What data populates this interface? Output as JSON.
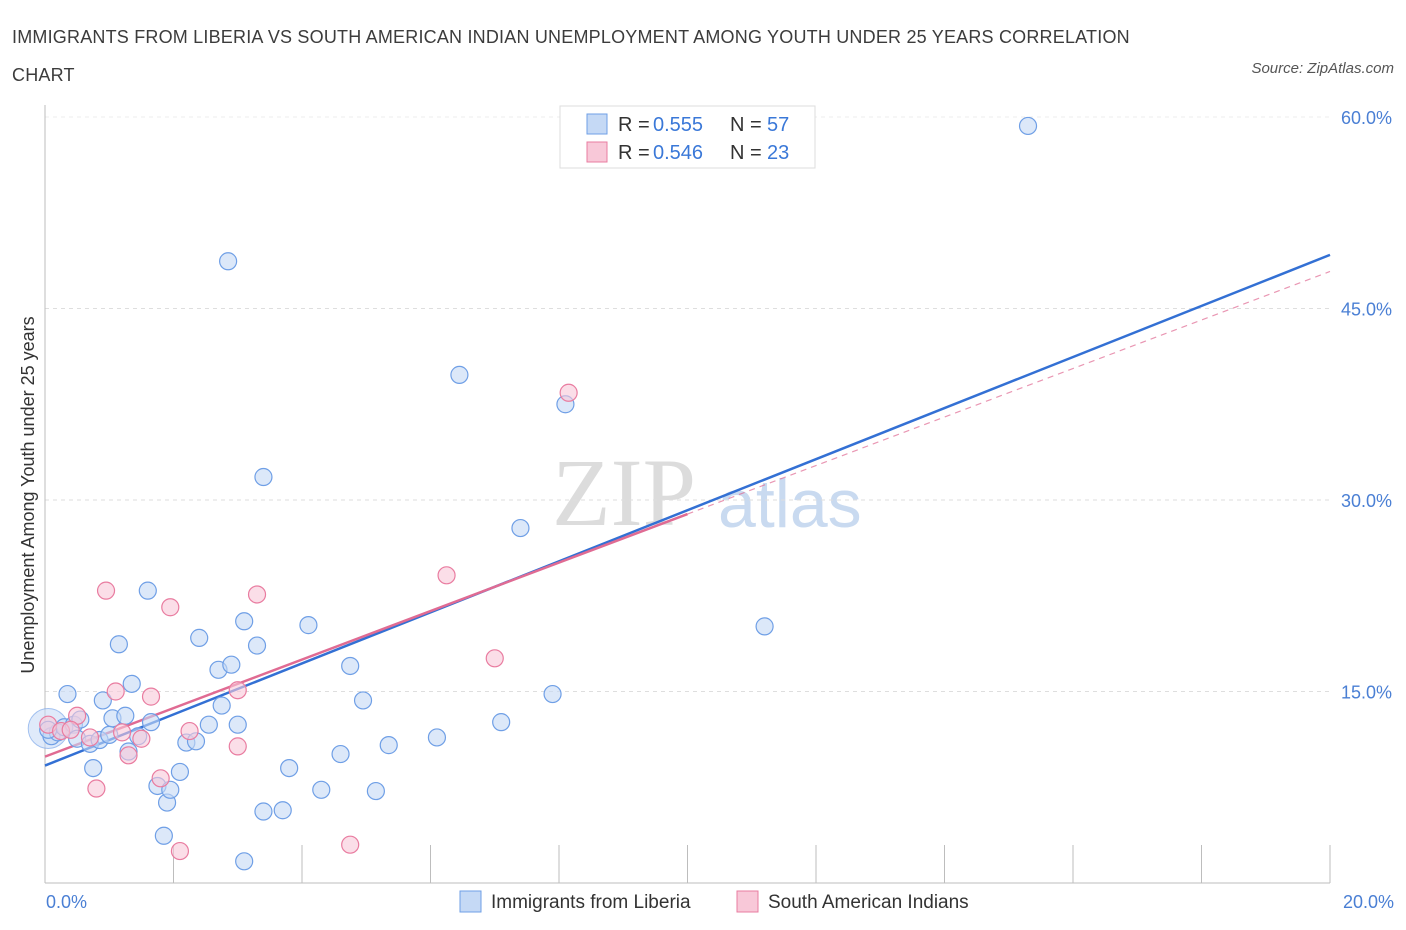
{
  "title": "IMMIGRANTS FROM LIBERIA VS SOUTH AMERICAN INDIAN UNEMPLOYMENT AMONG YOUTH UNDER 25 YEARS CORRELATION CHART",
  "source": "Source: ZipAtlas.com",
  "colors": {
    "blue": "#6f9fe6",
    "blue_fill": "#c5d9f5",
    "pink": "#e97ca0",
    "pink_fill": "#f8c8d8",
    "blue_line": "#3370d4",
    "pink_line": "#e06b93",
    "tick": "#4a7fd4"
  },
  "legend": {
    "r_label": "R =",
    "n_label": "N =",
    "rows": [
      {
        "r": "0.555",
        "n": "57"
      },
      {
        "r": "0.546",
        "n": "23"
      }
    ]
  },
  "watermark": {
    "zip": "ZIP",
    "atlas": "atlas"
  },
  "chart_data": {
    "type": "scatter",
    "title": "IMMIGRANTS FROM LIBERIA VS SOUTH AMERICAN INDIAN UNEMPLOYMENT AMONG YOUTH UNDER 25 YEARS CORRELATION CHART",
    "xlabel": "",
    "ylabel": "Unemployment Among Youth under 25 years",
    "xlim": [
      0,
      20
    ],
    "ylim": [
      0,
      60
    ],
    "x_tick_labels": [
      "0.0%",
      "20.0%"
    ],
    "y_ticks": [
      15,
      30,
      45,
      60
    ],
    "y_tick_labels": [
      "15.0%",
      "30.0%",
      "45.0%",
      "60.0%"
    ],
    "grid": true,
    "legend_position": "top-center",
    "series": [
      {
        "name": "Immigrants from Liberia",
        "color": "blue",
        "points": [
          [
            0.1,
            11.5
          ],
          [
            0.2,
            11.8
          ],
          [
            0.3,
            12.2
          ],
          [
            0.35,
            14.8
          ],
          [
            0.45,
            12.4
          ],
          [
            0.5,
            11.3
          ],
          [
            0.55,
            12.8
          ],
          [
            0.7,
            10.9
          ],
          [
            0.75,
            9.0
          ],
          [
            0.85,
            11.2
          ],
          [
            0.9,
            14.3
          ],
          [
            1.0,
            11.6
          ],
          [
            1.05,
            12.9
          ],
          [
            1.15,
            18.7
          ],
          [
            1.25,
            13.1
          ],
          [
            1.3,
            10.3
          ],
          [
            1.35,
            15.6
          ],
          [
            1.45,
            11.5
          ],
          [
            1.6,
            22.9
          ],
          [
            1.65,
            12.6
          ],
          [
            1.75,
            7.6
          ],
          [
            1.85,
            3.7
          ],
          [
            1.9,
            6.3
          ],
          [
            1.95,
            7.3
          ],
          [
            2.1,
            8.7
          ],
          [
            2.2,
            11.0
          ],
          [
            2.35,
            11.1
          ],
          [
            2.4,
            19.2
          ],
          [
            2.55,
            12.4
          ],
          [
            2.7,
            16.7
          ],
          [
            2.75,
            13.9
          ],
          [
            2.85,
            48.7
          ],
          [
            2.9,
            17.1
          ],
          [
            3.0,
            12.4
          ],
          [
            3.1,
            1.7
          ],
          [
            3.1,
            20.5
          ],
          [
            3.3,
            18.6
          ],
          [
            3.4,
            31.8
          ],
          [
            3.4,
            5.6
          ],
          [
            3.7,
            5.7
          ],
          [
            3.8,
            9.0
          ],
          [
            4.1,
            20.2
          ],
          [
            4.3,
            7.3
          ],
          [
            4.6,
            10.1
          ],
          [
            4.75,
            17.0
          ],
          [
            4.95,
            14.3
          ],
          [
            5.15,
            7.2
          ],
          [
            5.35,
            10.8
          ],
          [
            6.1,
            11.4
          ],
          [
            6.45,
            39.8
          ],
          [
            7.1,
            12.6
          ],
          [
            7.4,
            27.8
          ],
          [
            7.9,
            14.8
          ],
          [
            8.1,
            37.5
          ],
          [
            11.2,
            20.1
          ],
          [
            15.3,
            59.3
          ],
          [
            0.05,
            12.0
          ]
        ],
        "trend": {
          "x": [
            0,
            20
          ],
          "y": [
            9.2,
            49.2
          ]
        }
      },
      {
        "name": "South American Indians",
        "color": "pink",
        "points": [
          [
            0.05,
            12.4
          ],
          [
            0.25,
            11.9
          ],
          [
            0.5,
            13.1
          ],
          [
            0.7,
            11.4
          ],
          [
            0.8,
            7.4
          ],
          [
            0.95,
            22.9
          ],
          [
            1.1,
            15.0
          ],
          [
            1.3,
            10.0
          ],
          [
            1.5,
            11.3
          ],
          [
            1.65,
            14.6
          ],
          [
            1.8,
            8.2
          ],
          [
            1.95,
            21.6
          ],
          [
            2.1,
            2.5
          ],
          [
            2.25,
            11.9
          ],
          [
            3.0,
            10.7
          ],
          [
            3.0,
            15.1
          ],
          [
            3.3,
            22.6
          ],
          [
            4.75,
            3.0
          ],
          [
            6.25,
            24.1
          ],
          [
            7.0,
            17.6
          ],
          [
            8.15,
            38.4
          ],
          [
            1.2,
            11.8
          ],
          [
            0.4,
            12.0
          ]
        ],
        "trend": {
          "x": [
            0,
            10.0
          ],
          "y": [
            9.9,
            28.9
          ]
        },
        "trend_extension": {
          "x": [
            10.0,
            20
          ],
          "y": [
            28.9,
            47.9
          ]
        }
      }
    ]
  },
  "bottom_legend": [
    {
      "label": "Immigrants from Liberia",
      "color": "blue"
    },
    {
      "label": "South American Indians",
      "color": "pink"
    }
  ]
}
